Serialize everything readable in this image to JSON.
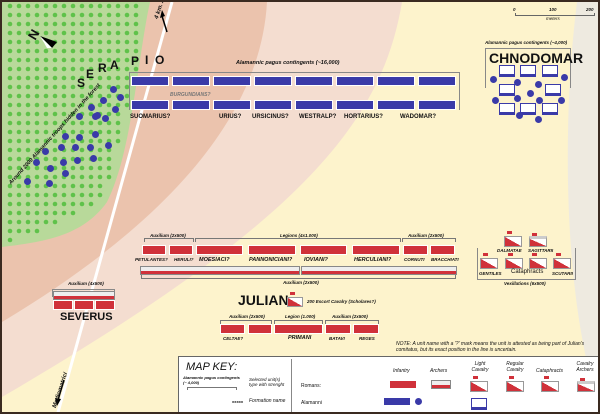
{
  "colors": {
    "roman": "#d0313a",
    "alamanni": "#3a3aa8",
    "forest": "#b8d99a",
    "tree": "#5fc24a",
    "band_dark": "#ebc3ad",
    "band_light": "#f4ddd0",
    "field": "#fdf3cc",
    "far": "#eeeae0"
  },
  "scale": {
    "ticks": [
      "0",
      "100",
      "200"
    ],
    "unit": "meters"
  },
  "compass": {
    "letter": "N"
  },
  "roads": {
    "north": "4 km. Argentoratum",
    "south": "Mediomatrici"
  },
  "forest_note": "Around 2000 Alamannic troops hidden in the forest",
  "serapio": [
    "S",
    "E",
    "R",
    "A",
    "P",
    "I",
    "O"
  ],
  "alamanni_main": {
    "title": "Alamannic pagus contingents (~16,000)",
    "burgundians": "BURGUNDIANS?",
    "leaders": [
      "SUOMARIUS?",
      "URIUS?",
      "URSICINUS?",
      "WESTRALP?",
      "HORTARIUS?",
      "WADOMAR?"
    ]
  },
  "chnodomar": {
    "title": "Alamannic pagus contingents (~4,000)",
    "name": "CHNODOMAR"
  },
  "front_line": {
    "groups": [
      "Auxilium (2x500)",
      "Legions (4x1.000)",
      "Auxilium (2x500)"
    ],
    "units": [
      "PETULANTES?",
      "HERULI?",
      "MOESIACI?",
      "PANNONICIANI?",
      "IOVIANI?",
      "HERCULIANI?",
      "CORNUTI",
      "BRACCHIATI"
    ],
    "archers": "Auxilium (2x500)"
  },
  "julian": {
    "name": "JULIAN",
    "escort": "200 Escort Cavalry (Scholares?)"
  },
  "rear_line": {
    "groups": [
      "Auxilium (2x500)",
      "Legion (1.000)",
      "Auxilium (2x500)"
    ],
    "units": [
      "CELTAE?",
      "PRIMANI",
      "BATAVI",
      "REGES"
    ]
  },
  "cavalry": {
    "units": [
      "DALMATAE",
      "SAGITTARII",
      "GENTILES",
      "SCUTARII"
    ],
    "cataphracts": "Cataphracts",
    "group": "Vexillations (6x500)"
  },
  "severus": {
    "group": "Auxilium (4x500)",
    "name": "SEVERUS"
  },
  "note": "NOTE: A unit name with a '?' mark means the unit is attested as being part of Julian's comitatus, but its exact position in the line is uncertain.",
  "key": {
    "title": "MAP KEY:",
    "sample_label": "Alamannic pagus contingents (~ 4,000)",
    "selected_desc": "Selected unit(s) type with strenght",
    "formation_sample": "xxxxx",
    "formation_desc": "Formation name",
    "columns": [
      "Infantry",
      "Archers",
      "Light Cavalry",
      "Regular Cavalry",
      "Cataphracts",
      "Cavalry Archers"
    ],
    "rows": [
      "Romans:",
      "Alamanni"
    ]
  }
}
